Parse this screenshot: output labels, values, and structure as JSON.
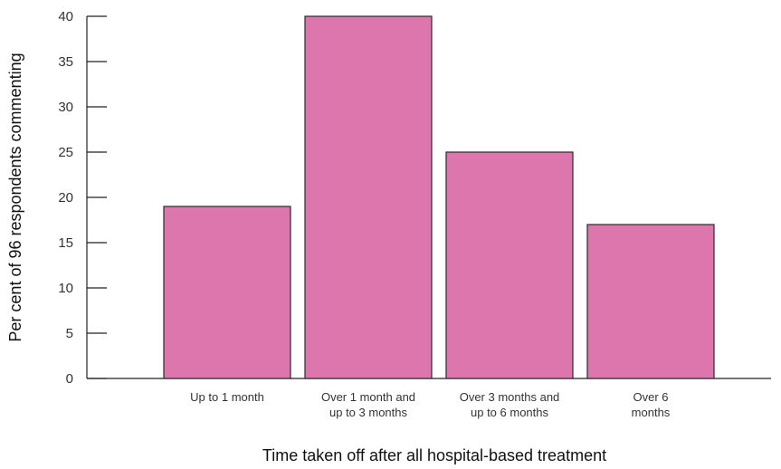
{
  "chart_data": {
    "type": "bar",
    "categories": [
      [
        "Up to 1 month"
      ],
      [
        "Over 1 month and",
        "up to 3 months"
      ],
      [
        "Over 3 months and",
        "up to 6 months"
      ],
      [
        "Over 6",
        "months"
      ]
    ],
    "values": [
      19,
      40,
      25,
      17
    ],
    "xlabel": "Time taken off after all hospital-based treatment",
    "ylabel": "Per cent of 96 respondents commenting",
    "ylim": [
      0,
      40
    ],
    "yticks": [
      0,
      5,
      10,
      15,
      20,
      25,
      30,
      35,
      40
    ],
    "grid": false,
    "legend": "none",
    "colors": {
      "bar_fill": "#dd76ad",
      "bar_stroke": "#2b2b2b",
      "axis": "#222222"
    }
  }
}
